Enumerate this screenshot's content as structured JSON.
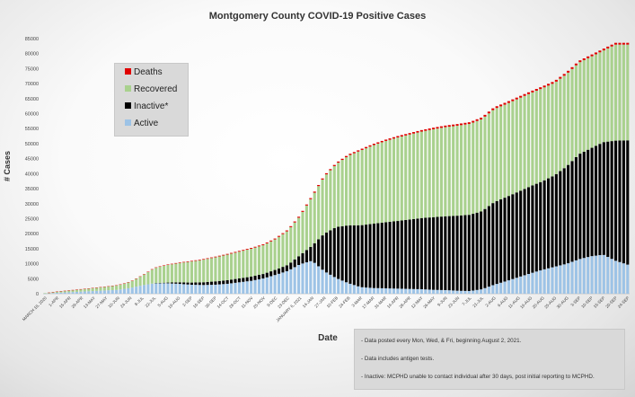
{
  "chart_data": {
    "type": "bar",
    "stacked": true,
    "title": "Montgomery County COVID-19 Positive Cases",
    "xlabel": "Date",
    "ylabel": "# Cases",
    "ylim": [
      0,
      85000
    ],
    "grid": false,
    "legend_placement": "upper-left",
    "y_ticks": [
      "0",
      "5000",
      "10000",
      "15000",
      "20000",
      "25000",
      "30000",
      "35000",
      "40000",
      "45000",
      "50000",
      "55000",
      "60000",
      "65000",
      "70000",
      "75000",
      "80000",
      "85000"
    ],
    "categories": [
      "MARCH 18, 2020",
      "1-APR",
      "15-APR",
      "29-APR",
      "13-MAY",
      "27-MAY",
      "10-JUN",
      "24-JUN",
      "8-JUL",
      "22-JUL",
      "5-AUG",
      "19-AUG",
      "2-SEP",
      "16-SEP",
      "30-SEP",
      "14-OCT",
      "28-OCT",
      "11-NOV",
      "25-NOV",
      "9-DEC",
      "23-DEC",
      "JANUARY 6, 2021",
      "14-JAN",
      "27-JAN",
      "10-FEB",
      "24-FEB",
      "3-MAR",
      "17-MAR",
      "31-MAR",
      "14-APR",
      "28-APR",
      "12-MAY",
      "26-MAY",
      "9-JUN",
      "23-JUN",
      "7-JUL",
      "21-JUL",
      "2-AUG",
      "6-AUG",
      "11-AUG",
      "16-AUG",
      "20-AUG",
      "25-AUG",
      "30-AUG",
      "3-SEP",
      "10-SEP",
      "15-SEP",
      "20-SEP",
      "24-SEP"
    ],
    "series": [
      {
        "name": "Active",
        "color": "#9dc3e6",
        "values": [
          50,
          300,
          500,
          700,
          900,
          1100,
          1300,
          1900,
          2800,
          3500,
          3500,
          3300,
          3000,
          2900,
          3000,
          3300,
          3800,
          4300,
          5100,
          6300,
          7600,
          9800,
          11000,
          7500,
          5200,
          3500,
          2200,
          1900,
          1800,
          1700,
          1600,
          1500,
          1300,
          1200,
          1000,
          900,
          1500,
          3000,
          4200,
          5500,
          6800,
          8000,
          9000,
          10000,
          11500,
          12500,
          13000,
          11000,
          9700
        ]
      },
      {
        "name": "Inactive*",
        "color": "#000000",
        "values": [
          0,
          0,
          0,
          0,
          0,
          0,
          0,
          0,
          0,
          0,
          200,
          500,
          700,
          900,
          1100,
          1200,
          1300,
          1400,
          1500,
          1700,
          2000,
          3000,
          5000,
          12500,
          17000,
          19300,
          20600,
          21400,
          22000,
          22500,
          23100,
          23700,
          24200,
          24600,
          25000,
          25400,
          26000,
          27500,
          28000,
          28500,
          29000,
          29500,
          30500,
          32500,
          35000,
          36000,
          37500,
          40000,
          41400
        ]
      },
      {
        "name": "Recovered",
        "color": "#a9d18e",
        "values": [
          150,
          400,
          600,
          800,
          1000,
          1200,
          1500,
          2000,
          3200,
          5000,
          5800,
          6400,
          7000,
          7500,
          8000,
          8500,
          8900,
          9300,
          9600,
          10200,
          11400,
          13000,
          16300,
          19000,
          21000,
          23200,
          24900,
          26100,
          27000,
          27800,
          28300,
          28800,
          29300,
          29700,
          30000,
          30300,
          30700,
          31000,
          31000,
          31000,
          31000,
          31000,
          30800,
          30800,
          30500,
          30500,
          30500,
          32000,
          31900
        ]
      },
      {
        "name": "Deaths",
        "color": "#e00000",
        "values": [
          0,
          0,
          0,
          0,
          0,
          0,
          0,
          0,
          0,
          0,
          0,
          0,
          0,
          0,
          0,
          0,
          0,
          0,
          0,
          0,
          0,
          0,
          0,
          0,
          0,
          0,
          0,
          0,
          0,
          0,
          0,
          0,
          0,
          0,
          0,
          0,
          0,
          0,
          0,
          0,
          0,
          0,
          0,
          0,
          0,
          0,
          0,
          0,
          0
        ]
      }
    ],
    "deaths_total": 600
  },
  "legend": [
    "Deaths",
    "Recovered",
    "Inactive*",
    "Active"
  ],
  "notes": [
    "- Data posted every Mon, Wed, & Fri, beginning August 2, 2021.",
    "- Data includes antigen tests.",
    "- Inactive: MCPHD unable to contact individual after 30 days, post initial reporting to MCPHD."
  ]
}
